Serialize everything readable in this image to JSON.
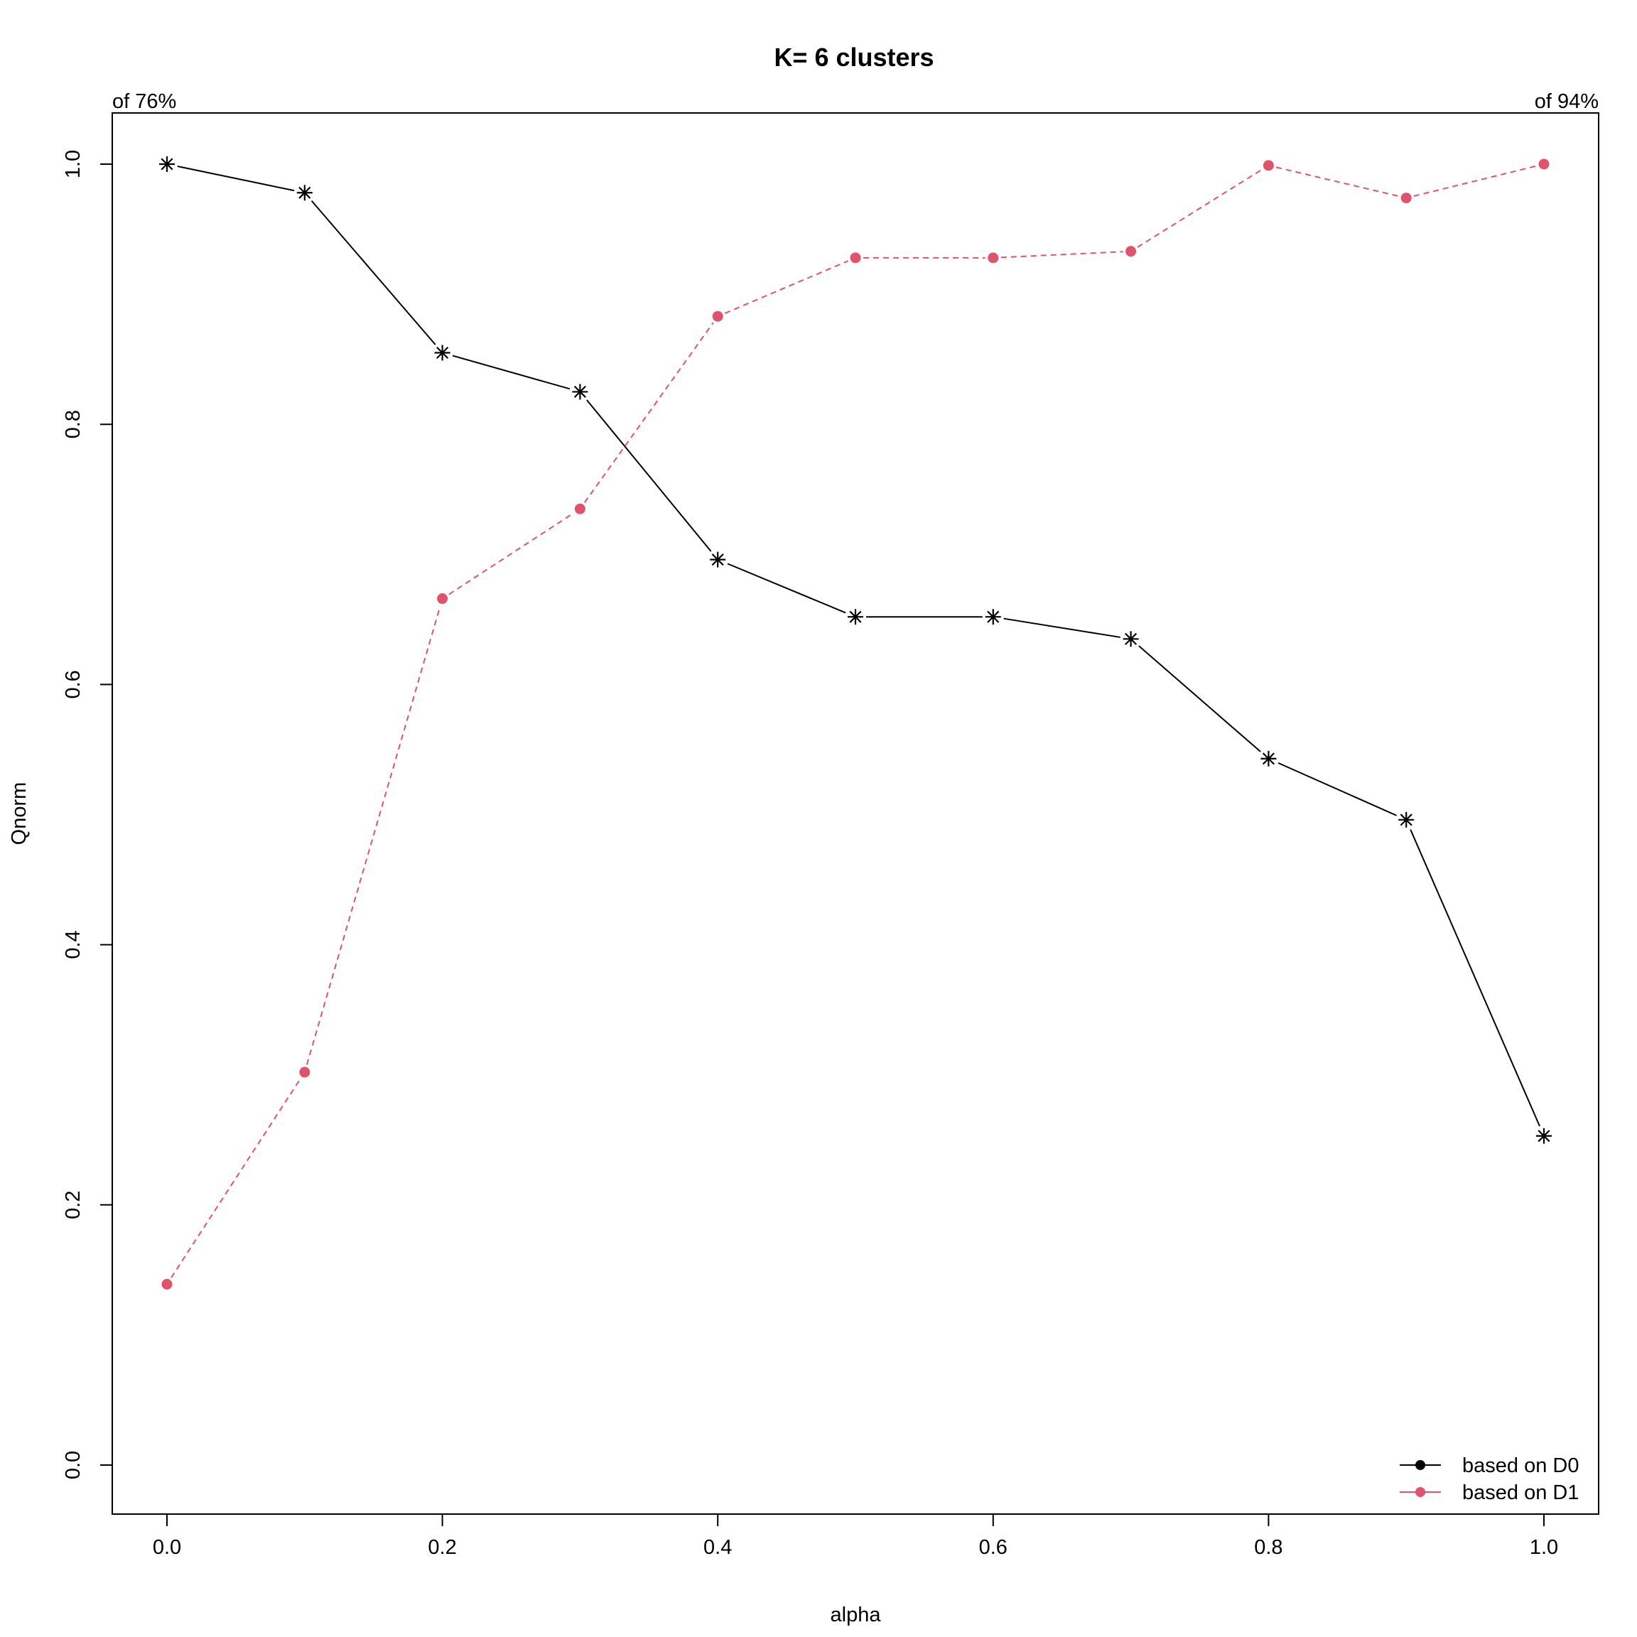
{
  "chart_data": {
    "type": "line",
    "title": "K= 6 clusters",
    "xlabel": "alpha",
    "ylabel": "Qnorm",
    "annotation_left": "of 76%",
    "annotation_right": "of 94%",
    "xlim": [
      0.0,
      1.0
    ],
    "ylim": [
      0.0,
      1.0
    ],
    "x_ticks": [
      "0.0",
      "0.2",
      "0.4",
      "0.6",
      "0.8",
      "1.0"
    ],
    "y_ticks": [
      "0.0",
      "0.2",
      "0.4",
      "0.6",
      "0.8",
      "1.0"
    ],
    "grid": false,
    "legend_position": "bottom-right",
    "x": [
      0.0,
      0.1,
      0.2,
      0.3,
      0.4,
      0.5,
      0.6,
      0.7,
      0.8,
      0.9,
      1.0
    ],
    "series": [
      {
        "name": "based on D0",
        "color": "#000000",
        "line_style": "solid",
        "marker": "asterisk",
        "legend_marker": "filled-circle",
        "values": [
          1.0,
          0.978,
          0.855,
          0.825,
          0.696,
          0.652,
          0.652,
          0.635,
          0.543,
          0.496,
          0.253
        ]
      },
      {
        "name": "based on D1",
        "color": "#DF536B",
        "line_style": "dashed",
        "marker": "filled-circle",
        "legend_marker": "filled-circle",
        "values": [
          0.139,
          0.302,
          0.666,
          0.735,
          0.883,
          0.928,
          0.928,
          0.933,
          0.999,
          0.974,
          1.0
        ]
      }
    ]
  }
}
